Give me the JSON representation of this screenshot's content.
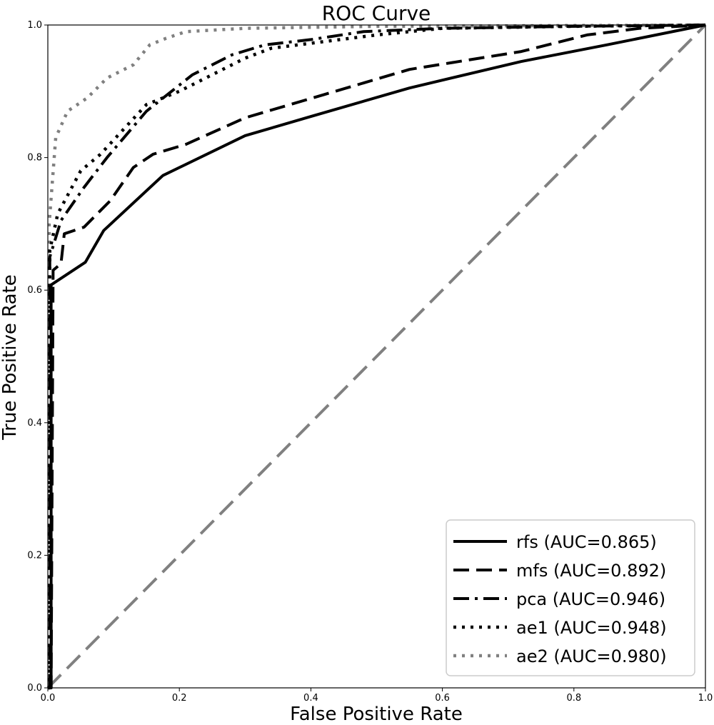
{
  "chart_data": {
    "type": "line",
    "title": "ROC Curve",
    "xlabel": "False Positive Rate",
    "ylabel": "True Positive Rate",
    "xlim": [
      0,
      1
    ],
    "ylim": [
      0,
      1
    ],
    "xticks": [
      "0.0",
      "0.2",
      "0.4",
      "0.6",
      "0.8",
      "1.0"
    ],
    "yticks": [
      "0.0",
      "0.2",
      "0.4",
      "0.6",
      "0.8",
      "1.0"
    ],
    "legend_position": "lower-right",
    "reference_line": {
      "x": [
        0,
        1
      ],
      "y": [
        0,
        1
      ],
      "color": "#808080",
      "style": "dashed"
    },
    "series": [
      {
        "name": "rfs",
        "label": "rfs (AUC=0.865)",
        "auc": 0.865,
        "color": "#000000",
        "style": "solid",
        "x": [
          0,
          0.005,
          0.005,
          0.057,
          0.085,
          0.175,
          0.3,
          0.4,
          0.55,
          0.72,
          0.85,
          1.0
        ],
        "y": [
          0,
          0,
          0.608,
          0.642,
          0.69,
          0.773,
          0.833,
          0.862,
          0.905,
          0.945,
          0.97,
          1.0
        ]
      },
      {
        "name": "mfs",
        "label": "mfs (AUC=0.892)",
        "auc": 0.892,
        "color": "#000000",
        "style": "dashed",
        "x": [
          0,
          0.005,
          0.008,
          0.02,
          0.025,
          0.055,
          0.095,
          0.13,
          0.16,
          0.21,
          0.3,
          0.42,
          0.55,
          0.72,
          0.82,
          0.9,
          1.0
        ],
        "y": [
          0,
          0,
          0.63,
          0.64,
          0.685,
          0.695,
          0.735,
          0.785,
          0.805,
          0.82,
          0.86,
          0.895,
          0.933,
          0.96,
          0.985,
          0.995,
          1.0
        ]
      },
      {
        "name": "pca",
        "label": "pca (AUC=0.946)",
        "auc": 0.946,
        "color": "#000000",
        "style": "dashdot",
        "x": [
          0,
          0.003,
          0.003,
          0.02,
          0.055,
          0.09,
          0.15,
          0.22,
          0.28,
          0.33,
          0.4,
          0.48,
          0.6,
          0.8,
          1.0
        ],
        "y": [
          0,
          0,
          0.65,
          0.705,
          0.755,
          0.8,
          0.87,
          0.925,
          0.955,
          0.97,
          0.978,
          0.99,
          0.995,
          0.998,
          1.0
        ]
      },
      {
        "name": "ae1",
        "label": "ae1 (AUC=0.948)",
        "auc": 0.948,
        "color": "#000000",
        "style": "dotted",
        "x": [
          0,
          0.003,
          0.003,
          0.015,
          0.05,
          0.08,
          0.15,
          0.2,
          0.26,
          0.3,
          0.34,
          0.42,
          0.5,
          0.6,
          0.8,
          1.0
        ],
        "y": [
          0,
          0,
          0.66,
          0.715,
          0.78,
          0.805,
          0.88,
          0.9,
          0.93,
          0.95,
          0.965,
          0.975,
          0.985,
          0.995,
          0.998,
          1.0
        ]
      },
      {
        "name": "ae2",
        "label": "ae2 (AUC=0.980)",
        "auc": 0.98,
        "color": "#808080",
        "style": "dotted",
        "x": [
          0,
          0.002,
          0.002,
          0.012,
          0.03,
          0.06,
          0.09,
          0.13,
          0.155,
          0.18,
          0.21,
          0.3,
          0.5,
          1.0
        ],
        "y": [
          0,
          0,
          0.7,
          0.83,
          0.87,
          0.89,
          0.92,
          0.94,
          0.97,
          0.98,
          0.99,
          0.995,
          0.998,
          1.0
        ]
      }
    ]
  }
}
